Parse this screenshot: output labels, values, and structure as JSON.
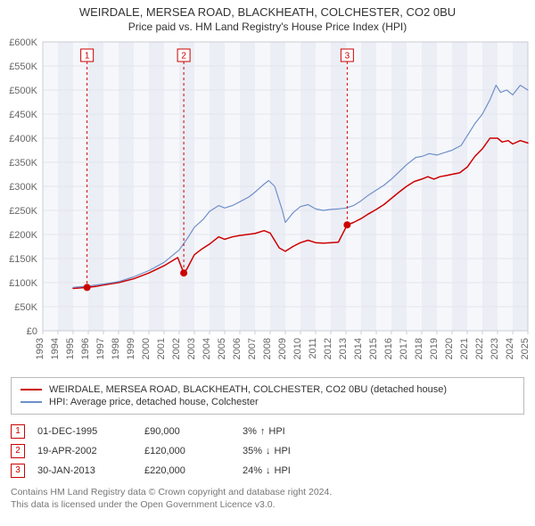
{
  "title": "WEIRDALE, MERSEA ROAD, BLACKHEATH, COLCHESTER, CO2 0BU",
  "subtitle": "Price paid vs. HM Land Registry's House Price Index (HPI)",
  "chart": {
    "type": "line",
    "background_color": "#ffffff",
    "plot_background_color": "#f6f7fb",
    "plot_band_color": "#eceef5",
    "grid_color": "#e3e6ee",
    "axis_line_color": "#c9ccd6",
    "tick_label_color": "#666666",
    "tick_label_fontsize": 11,
    "title_fontsize": 13,
    "legend_border_color": "#bbbbbb",
    "y_axis": {
      "min": 0,
      "max": 600000,
      "tick_step": 50000,
      "tick_labels": [
        "£0",
        "£50K",
        "£100K",
        "£150K",
        "£200K",
        "£250K",
        "£300K",
        "£350K",
        "£400K",
        "£450K",
        "£500K",
        "£550K",
        "£600K"
      ]
    },
    "x_axis": {
      "min": 1993,
      "max": 2025,
      "tick_step": 1,
      "tick_labels": [
        "1993",
        "1994",
        "1995",
        "1996",
        "1997",
        "1998",
        "1999",
        "2000",
        "2001",
        "2002",
        "2003",
        "2004",
        "2005",
        "2006",
        "2007",
        "2008",
        "2009",
        "2010",
        "2011",
        "2012",
        "2013",
        "2014",
        "2015",
        "2016",
        "2017",
        "2018",
        "2019",
        "2020",
        "2021",
        "2022",
        "2023",
        "2024",
        "2025"
      ],
      "rotation": -90
    },
    "series": [
      {
        "name": "property",
        "label": "WEIRDALE, MERSEA ROAD, BLACKHEATH, COLCHESTER, CO2 0BU (detached house)",
        "color": "#cc0000",
        "line_width": 1.5,
        "data": [
          [
            1995.0,
            88000
          ],
          [
            1995.92,
            90000
          ],
          [
            1996.5,
            92000
          ],
          [
            1997.0,
            95000
          ],
          [
            1998.0,
            100000
          ],
          [
            1999.0,
            108000
          ],
          [
            2000.0,
            120000
          ],
          [
            2001.0,
            135000
          ],
          [
            2001.9,
            152000
          ],
          [
            2002.3,
            120000
          ],
          [
            2002.5,
            128000
          ],
          [
            2003.0,
            158000
          ],
          [
            2003.5,
            170000
          ],
          [
            2004.0,
            180000
          ],
          [
            2004.6,
            195000
          ],
          [
            2005.0,
            190000
          ],
          [
            2005.5,
            195000
          ],
          [
            2006.0,
            198000
          ],
          [
            2006.5,
            200000
          ],
          [
            2007.0,
            202000
          ],
          [
            2007.6,
            208000
          ],
          [
            2008.0,
            203000
          ],
          [
            2008.6,
            172000
          ],
          [
            2009.0,
            165000
          ],
          [
            2009.5,
            175000
          ],
          [
            2010.0,
            183000
          ],
          [
            2010.5,
            188000
          ],
          [
            2011.0,
            183000
          ],
          [
            2011.5,
            182000
          ],
          [
            2012.0,
            183000
          ],
          [
            2012.5,
            184000
          ],
          [
            2013.08,
            220000
          ],
          [
            2013.5,
            225000
          ],
          [
            2014.0,
            233000
          ],
          [
            2014.5,
            243000
          ],
          [
            2015.0,
            252000
          ],
          [
            2015.5,
            262000
          ],
          [
            2016.0,
            275000
          ],
          [
            2016.5,
            288000
          ],
          [
            2017.0,
            300000
          ],
          [
            2017.5,
            310000
          ],
          [
            2018.0,
            315000
          ],
          [
            2018.4,
            320000
          ],
          [
            2018.8,
            315000
          ],
          [
            2019.2,
            320000
          ],
          [
            2019.7,
            323000
          ],
          [
            2020.0,
            325000
          ],
          [
            2020.5,
            328000
          ],
          [
            2021.0,
            340000
          ],
          [
            2021.5,
            362000
          ],
          [
            2022.0,
            378000
          ],
          [
            2022.5,
            400000
          ],
          [
            2023.0,
            400000
          ],
          [
            2023.3,
            392000
          ],
          [
            2023.7,
            395000
          ],
          [
            2024.0,
            388000
          ],
          [
            2024.5,
            395000
          ],
          [
            2025.0,
            390000
          ]
        ]
      },
      {
        "name": "hpi",
        "label": "HPI: Average price, detached house, Colchester",
        "color": "#6f8fc9",
        "line_width": 1.2,
        "data": [
          [
            1995.0,
            90000
          ],
          [
            1996.0,
            93000
          ],
          [
            1997.0,
            97000
          ],
          [
            1998.0,
            102000
          ],
          [
            1999.0,
            112000
          ],
          [
            2000.0,
            125000
          ],
          [
            2001.0,
            142000
          ],
          [
            2002.0,
            168000
          ],
          [
            2002.5,
            190000
          ],
          [
            2003.0,
            215000
          ],
          [
            2003.6,
            232000
          ],
          [
            2004.0,
            248000
          ],
          [
            2004.6,
            260000
          ],
          [
            2005.0,
            255000
          ],
          [
            2005.5,
            260000
          ],
          [
            2006.0,
            268000
          ],
          [
            2006.6,
            278000
          ],
          [
            2007.0,
            288000
          ],
          [
            2007.5,
            302000
          ],
          [
            2007.9,
            312000
          ],
          [
            2008.3,
            300000
          ],
          [
            2008.8,
            250000
          ],
          [
            2009.0,
            225000
          ],
          [
            2009.5,
            245000
          ],
          [
            2010.0,
            258000
          ],
          [
            2010.5,
            262000
          ],
          [
            2011.0,
            253000
          ],
          [
            2011.5,
            250000
          ],
          [
            2012.0,
            252000
          ],
          [
            2012.5,
            253000
          ],
          [
            2013.0,
            255000
          ],
          [
            2013.5,
            260000
          ],
          [
            2014.0,
            270000
          ],
          [
            2014.5,
            282000
          ],
          [
            2015.0,
            292000
          ],
          [
            2015.5,
            302000
          ],
          [
            2016.0,
            315000
          ],
          [
            2016.5,
            330000
          ],
          [
            2017.0,
            345000
          ],
          [
            2017.6,
            360000
          ],
          [
            2018.0,
            362000
          ],
          [
            2018.5,
            368000
          ],
          [
            2019.0,
            365000
          ],
          [
            2019.5,
            370000
          ],
          [
            2020.0,
            375000
          ],
          [
            2020.6,
            385000
          ],
          [
            2021.0,
            405000
          ],
          [
            2021.5,
            430000
          ],
          [
            2022.0,
            450000
          ],
          [
            2022.5,
            480000
          ],
          [
            2022.9,
            510000
          ],
          [
            2023.2,
            495000
          ],
          [
            2023.6,
            500000
          ],
          [
            2024.0,
            490000
          ],
          [
            2024.5,
            510000
          ],
          [
            2025.0,
            500000
          ]
        ]
      }
    ],
    "sale_markers": [
      {
        "n": "1",
        "x": 1995.92,
        "y": 90000
      },
      {
        "n": "2",
        "x": 2002.3,
        "y": 120000
      },
      {
        "n": "3",
        "x": 2013.08,
        "y": 220000
      }
    ],
    "marker_box_size": 14,
    "marker_dot_radius": 4
  },
  "legend": {
    "items": [
      {
        "color": "#cc0000",
        "label": "WEIRDALE, MERSEA ROAD, BLACKHEATH, COLCHESTER, CO2 0BU (detached house)"
      },
      {
        "color": "#6f8fc9",
        "label": "HPI: Average price, detached house, Colchester"
      }
    ]
  },
  "events": [
    {
      "n": "1",
      "date": "01-DEC-1995",
      "price": "£90,000",
      "diff_pct": "3%",
      "arrow": "↑",
      "suffix": "HPI"
    },
    {
      "n": "2",
      "date": "19-APR-2002",
      "price": "£120,000",
      "diff_pct": "35%",
      "arrow": "↓",
      "suffix": "HPI"
    },
    {
      "n": "3",
      "date": "30-JAN-2013",
      "price": "£220,000",
      "diff_pct": "24%",
      "arrow": "↓",
      "suffix": "HPI"
    }
  ],
  "attribution": {
    "line1": "Contains HM Land Registry data © Crown copyright and database right 2024.",
    "line2": "This data is licensed under the Open Government Licence v3.0."
  }
}
